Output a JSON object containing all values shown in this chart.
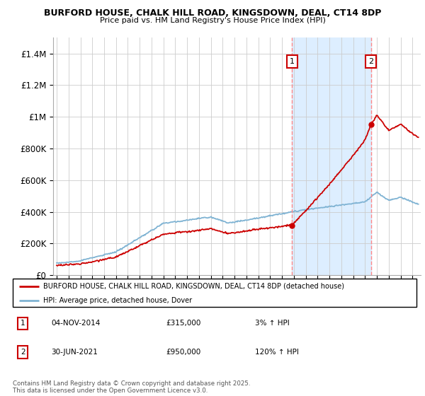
{
  "title1": "BURFORD HOUSE, CHALK HILL ROAD, KINGSDOWN, DEAL, CT14 8DP",
  "title2": "Price paid vs. HM Land Registry's House Price Index (HPI)",
  "ylim": [
    0,
    1500000
  ],
  "yticks": [
    0,
    200000,
    400000,
    600000,
    800000,
    1000000,
    1200000,
    1400000
  ],
  "ytick_labels": [
    "£0",
    "£200K",
    "£400K",
    "£600K",
    "£800K",
    "£1M",
    "£1.2M",
    "£1.4M"
  ],
  "xmin": 1995,
  "xmax": 2025,
  "marker1_x": 2014.84,
  "marker1_y": 315000,
  "marker1_label": "1",
  "marker2_x": 2021.5,
  "marker2_y": 950000,
  "marker2_label": "2",
  "legend_line1": "BURFORD HOUSE, CHALK HILL ROAD, KINGSDOWN, DEAL, CT14 8DP (detached house)",
  "legend_line2": "HPI: Average price, detached house, Dover",
  "footer": "Contains HM Land Registry data © Crown copyright and database right 2025.\nThis data is licensed under the Open Government Licence v3.0.",
  "red_color": "#cc0000",
  "blue_color": "#7fb3d3",
  "shade_color": "#ddeeff",
  "dashed_color": "#ff8888",
  "background_color": "#ffffff",
  "grid_color": "#cccccc"
}
